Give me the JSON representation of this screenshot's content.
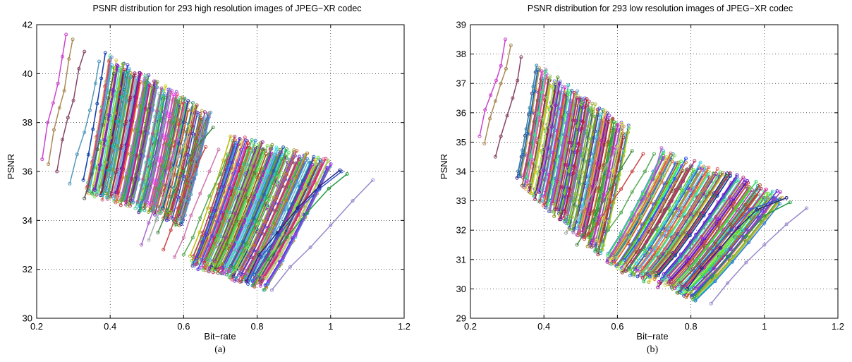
{
  "chart_data": [
    {
      "type": "line",
      "title": "PSNR distribution for 293 high resolution images of JPEG−XR codec",
      "xlabel": "Bit−rate",
      "ylabel": "PSNR",
      "caption": "(a)",
      "xlim": [
        0.2,
        1.2
      ],
      "ylim": [
        30,
        42
      ],
      "xticks": [
        0.2,
        0.4,
        0.6,
        0.8,
        1.0,
        1.2
      ],
      "yticks": [
        30,
        32,
        34,
        36,
        38,
        40,
        42
      ],
      "xtick_labels": [
        "0.2",
        "0.4",
        "0.6",
        "0.8",
        "1",
        "1.2"
      ],
      "ytick_labels": [
        "30",
        "32",
        "34",
        "36",
        "38",
        "40",
        "42"
      ],
      "grid": true,
      "series_count": 293,
      "seed": 7,
      "families": [
        {
          "count": 140,
          "x_lo": [
            0.33,
            0.6
          ],
          "x_hi": [
            0.39,
            0.67
          ],
          "y_lo": [
            35.4,
            34.0
          ],
          "y_hi": [
            40.6,
            38.2
          ],
          "jitter": 0.3
        },
        {
          "count": 135,
          "x_lo": [
            0.62,
            0.83
          ],
          "x_hi": [
            0.73,
            1.0
          ],
          "y_lo": [
            32.4,
            31.4
          ],
          "y_hi": [
            37.3,
            36.2
          ],
          "jitter": 0.3
        }
      ],
      "series": [
        {
          "color": "#cc44cc",
          "x": [
            0.215,
            0.23,
            0.245,
            0.258,
            0.27,
            0.28
          ],
          "y": [
            36.5,
            38.0,
            38.8,
            39.6,
            40.7,
            41.6
          ]
        },
        {
          "color": "#aa8855",
          "x": [
            0.232,
            0.247,
            0.262,
            0.275,
            0.288,
            0.298
          ],
          "y": [
            36.3,
            37.7,
            38.6,
            39.3,
            40.6,
            41.4
          ]
        },
        {
          "color": "#884466",
          "x": [
            0.255,
            0.27,
            0.285,
            0.3,
            0.315,
            0.33
          ],
          "y": [
            36.0,
            37.3,
            38.2,
            38.9,
            40.2,
            40.9
          ]
        },
        {
          "color": "#5599bb",
          "x": [
            0.29,
            0.31,
            0.33,
            0.345,
            0.36,
            0.37
          ],
          "y": [
            35.5,
            36.7,
            37.6,
            38.5,
            39.6,
            40.5
          ]
        },
        {
          "color": "#555555",
          "x": [
            0.33,
            0.35,
            0.365,
            0.38,
            0.395,
            0.41
          ],
          "y": [
            34.9,
            35.9,
            36.9,
            37.9,
            39.0,
            40.0
          ]
        },
        {
          "color": "#aa66cc",
          "x": [
            0.485,
            0.505,
            0.525,
            0.545,
            0.565,
            0.585
          ],
          "y": [
            33.0,
            33.9,
            34.7,
            35.6,
            36.5,
            37.3
          ]
        },
        {
          "color": "#aaaaaa",
          "x": [
            0.505,
            0.525,
            0.545,
            0.565,
            0.585,
            0.61
          ],
          "y": [
            33.2,
            34.0,
            34.9,
            35.8,
            36.6,
            37.4
          ]
        },
        {
          "color": "#448844",
          "x": [
            0.53,
            0.555,
            0.575,
            0.6,
            0.625,
            0.68
          ],
          "y": [
            33.5,
            34.4,
            35.2,
            36.0,
            36.8,
            37.8
          ]
        },
        {
          "color": "#cc4444",
          "x": [
            0.545,
            0.565,
            0.585,
            0.61,
            0.635,
            0.66
          ],
          "y": [
            32.8,
            33.6,
            34.5,
            35.4,
            36.2,
            37.0
          ]
        },
        {
          "color": "#cc77aa",
          "x": [
            0.575,
            0.6,
            0.62,
            0.645,
            0.67,
            0.695
          ],
          "y": [
            32.5,
            33.3,
            34.2,
            35.1,
            36.0,
            36.9
          ]
        },
        {
          "color": "#55aa55",
          "x": [
            0.6,
            0.625,
            0.645,
            0.67,
            0.7,
            0.72
          ],
          "y": [
            32.6,
            33.3,
            34.1,
            35.0,
            35.9,
            36.7
          ]
        },
        {
          "color": "#3355cc",
          "x": [
            0.775,
            0.81,
            0.86,
            0.91,
            0.97,
            1.03
          ],
          "y": [
            31.4,
            32.5,
            33.4,
            34.4,
            35.3,
            36.0
          ]
        },
        {
          "color": "#222288",
          "x": [
            0.77,
            0.805,
            0.855,
            0.91,
            0.97,
            1.025
          ],
          "y": [
            31.5,
            32.6,
            33.5,
            34.5,
            35.4,
            36.05
          ]
        },
        {
          "color": "#229944",
          "x": [
            0.79,
            0.83,
            0.88,
            0.935,
            0.995,
            1.045
          ],
          "y": [
            31.35,
            32.4,
            33.3,
            34.3,
            35.3,
            35.9
          ]
        },
        {
          "color": "#9988cc",
          "x": [
            0.84,
            0.89,
            0.945,
            1.0,
            1.06,
            1.115
          ],
          "y": [
            31.15,
            32.1,
            32.9,
            33.8,
            34.8,
            35.65
          ]
        }
      ]
    },
    {
      "type": "line",
      "title": "PSNR distribution for 293 low resolution images of JPEG−XR codec",
      "xlabel": "Bit−rate",
      "ylabel": "PSNR",
      "caption": "(b)",
      "xlim": [
        0.2,
        1.2
      ],
      "ylim": [
        29,
        39
      ],
      "xticks": [
        0.2,
        0.4,
        0.6,
        0.8,
        1.0,
        1.2
      ],
      "yticks": [
        29,
        30,
        31,
        32,
        33,
        34,
        35,
        36,
        37,
        38,
        39
      ],
      "xtick_labels": [
        "0.2",
        "0.4",
        "0.6",
        "0.8",
        "1",
        "1.2"
      ],
      "ytick_labels": [
        "29",
        "30",
        "31",
        "32",
        "33",
        "34",
        "35",
        "36",
        "37",
        "38",
        "39"
      ],
      "grid": true,
      "series_count": 293,
      "seed": 13,
      "families": [
        {
          "count": 140,
          "x_lo": [
            0.33,
            0.56
          ],
          "x_hi": [
            0.38,
            0.63
          ],
          "y_lo": [
            33.8,
            31.3
          ],
          "y_hi": [
            37.4,
            35.3
          ],
          "jitter": 0.25
        },
        {
          "count": 135,
          "x_lo": [
            0.57,
            0.82
          ],
          "x_hi": [
            0.72,
            1.05
          ],
          "y_lo": [
            31.0,
            29.8
          ],
          "y_hi": [
            34.5,
            33.1
          ],
          "jitter": 0.25
        }
      ],
      "series": [
        {
          "color": "#cc44cc",
          "x": [
            0.225,
            0.24,
            0.255,
            0.27,
            0.283,
            0.295
          ],
          "y": [
            35.2,
            36.1,
            36.6,
            37.1,
            37.6,
            38.5
          ]
        },
        {
          "color": "#aa8855",
          "x": [
            0.238,
            0.253,
            0.268,
            0.283,
            0.297,
            0.31
          ],
          "y": [
            34.95,
            35.8,
            36.4,
            37.0,
            37.5,
            38.3
          ]
        },
        {
          "color": "#884466",
          "x": [
            0.268,
            0.283,
            0.3,
            0.315,
            0.328,
            0.338
          ],
          "y": [
            34.5,
            35.2,
            35.9,
            36.5,
            37.1,
            37.9
          ]
        },
        {
          "color": "#aaaaaa",
          "x": [
            0.46,
            0.49,
            0.52,
            0.545,
            0.57,
            0.6
          ],
          "y": [
            31.9,
            32.4,
            33.0,
            33.6,
            34.2,
            34.8
          ]
        },
        {
          "color": "#448844",
          "x": [
            0.49,
            0.52,
            0.55,
            0.58,
            0.61,
            0.64
          ],
          "y": [
            31.5,
            32.1,
            32.7,
            33.4,
            34.1,
            34.7
          ]
        },
        {
          "color": "#cc4444",
          "x": [
            0.51,
            0.545,
            0.575,
            0.61,
            0.64,
            0.67
          ],
          "y": [
            31.7,
            32.2,
            32.8,
            33.4,
            34.0,
            34.6
          ]
        },
        {
          "color": "#55aa55",
          "x": [
            0.545,
            0.575,
            0.61,
            0.64,
            0.675,
            0.7
          ],
          "y": [
            31.3,
            32.0,
            32.6,
            33.3,
            34.0,
            34.6
          ]
        },
        {
          "color": "#aa66cc",
          "x": [
            0.585,
            0.615,
            0.645,
            0.675,
            0.7,
            0.72
          ],
          "y": [
            31.2,
            31.8,
            32.5,
            33.1,
            33.9,
            34.8
          ]
        },
        {
          "color": "#3355cc",
          "x": [
            0.77,
            0.81,
            0.86,
            0.91,
            0.96,
            1.04
          ],
          "y": [
            29.9,
            30.6,
            31.3,
            32.0,
            32.7,
            33.05
          ]
        },
        {
          "color": "#222288",
          "x": [
            0.79,
            0.83,
            0.88,
            0.93,
            0.98,
            1.06
          ],
          "y": [
            30.0,
            30.7,
            31.4,
            32.1,
            32.7,
            33.1
          ]
        },
        {
          "color": "#229944",
          "x": [
            0.81,
            0.855,
            0.9,
            0.95,
            1.0,
            1.07
          ],
          "y": [
            29.75,
            30.4,
            31.1,
            31.8,
            32.5,
            32.95
          ]
        },
        {
          "color": "#9988cc",
          "x": [
            0.855,
            0.9,
            0.95,
            1.0,
            1.06,
            1.115
          ],
          "y": [
            29.5,
            30.2,
            30.9,
            31.5,
            32.2,
            32.75
          ]
        }
      ]
    }
  ]
}
